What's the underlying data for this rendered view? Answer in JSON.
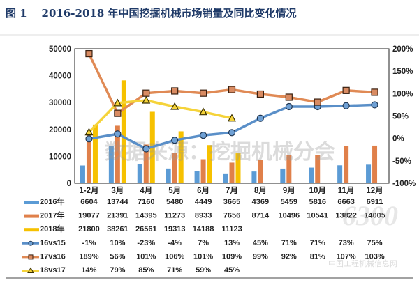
{
  "chart_data": {
    "type": "bar+line",
    "title": "图 1    2016-2018 年中国挖掘机械市场销量及同比变化情况",
    "categories": [
      "1-2月",
      "3月",
      "4月",
      "5月",
      "6月",
      "7月",
      "8月",
      "9月",
      "10月",
      "11月",
      "12月"
    ],
    "left_axis": {
      "ylim": [
        0,
        50000
      ],
      "ticks": [
        "0",
        "10000",
        "20000",
        "30000",
        "40000",
        "50000"
      ]
    },
    "right_axis": {
      "ylim": [
        -100,
        200
      ],
      "ticks": [
        "-100%",
        "-50%",
        "0%",
        "50%",
        "100%",
        "150%",
        "200%"
      ]
    },
    "bar_series": [
      {
        "name": "2016年",
        "color": "#5b9bd5",
        "values": [
          6604,
          13744,
          7160,
          5480,
          4449,
          3665,
          4369,
          5459,
          5816,
          6663,
          6911
        ]
      },
      {
        "name": "2017年",
        "color": "#e0804a",
        "values": [
          19077,
          21391,
          14395,
          11273,
          8933,
          7656,
          8714,
          10496,
          10541,
          13822,
          14005
        ]
      },
      {
        "name": "2018年",
        "color": "#f6c100",
        "values": [
          21800,
          38261,
          26561,
          19313,
          14188,
          11123
        ]
      }
    ],
    "line_series": [
      {
        "name": "16vs15",
        "color": "#5a8fc8",
        "marker": "circle",
        "values": [
          -1,
          10,
          -23,
          -4,
          7,
          13,
          45,
          71,
          71,
          73,
          75
        ],
        "labels": [
          "-1%",
          "10%",
          "-23%",
          "-4%",
          "7%",
          "13%",
          "45%",
          "71%",
          "71%",
          "73%",
          "75%"
        ]
      },
      {
        "name": "17vs16",
        "color": "#e08a55",
        "marker": "square",
        "values": [
          189,
          56,
          101,
          106,
          101,
          109,
          99,
          92,
          81,
          107,
          103
        ],
        "labels": [
          "189%",
          "56%",
          "101%",
          "106%",
          "101%",
          "109%",
          "99%",
          "92%",
          "81%",
          "107%",
          "103%"
        ]
      },
      {
        "name": "18vs17",
        "color": "#f5d33a",
        "marker": "triangle",
        "values": [
          14,
          79,
          85,
          71,
          59,
          45
        ],
        "labels": [
          "14%",
          "79%",
          "85%",
          "71%",
          "59%",
          "45%"
        ]
      }
    ],
    "legend": "bottom data table",
    "grid": false
  },
  "watermarks": {
    "source": "数据来源：挖掘机械分会",
    "site_logo": "www.6300.net 中国工程机械信息网"
  }
}
